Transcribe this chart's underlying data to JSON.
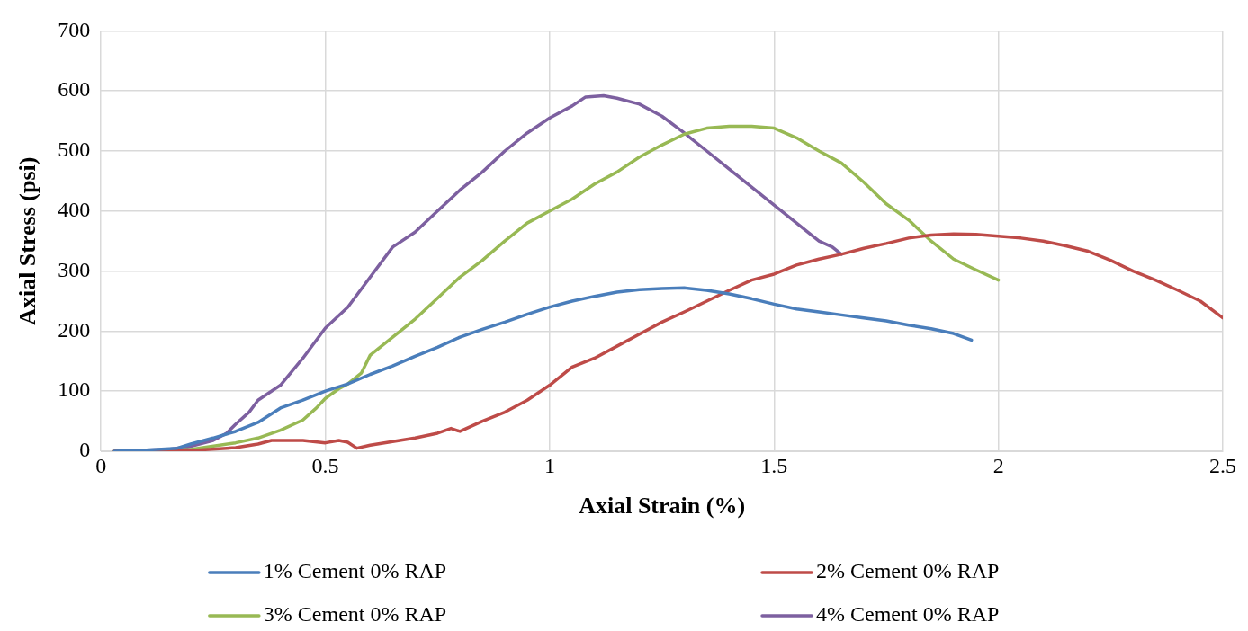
{
  "chart_data": {
    "type": "line",
    "xlabel": "Axial Strain (%)",
    "ylabel": "Axial Stress (psi)",
    "xlim": [
      0,
      2.5
    ],
    "xticks": [
      0,
      0.5,
      1,
      1.5,
      2,
      2.5
    ],
    "ylim": [
      0,
      700
    ],
    "yticks": [
      0,
      100,
      200,
      300,
      400,
      500,
      600,
      700
    ],
    "grid": true,
    "legend": "bottom",
    "marker": "none",
    "line_style": "solid",
    "series": [
      {
        "name": "1% Cement 0% RAP",
        "color": "#4a7ebb",
        "x": [
          0.03,
          0.1,
          0.17,
          0.2,
          0.25,
          0.3,
          0.35,
          0.4,
          0.45,
          0.5,
          0.55,
          0.6,
          0.65,
          0.7,
          0.75,
          0.8,
          0.85,
          0.9,
          0.95,
          1.0,
          1.05,
          1.1,
          1.15,
          1.2,
          1.25,
          1.3,
          1.35,
          1.4,
          1.45,
          1.5,
          1.55,
          1.6,
          1.65,
          1.7,
          1.75,
          1.8,
          1.85,
          1.9,
          1.94
        ],
        "values": [
          0,
          2,
          5,
          12,
          22,
          33,
          48,
          72,
          85,
          100,
          112,
          128,
          142,
          158,
          173,
          190,
          203,
          215,
          228,
          240,
          250,
          258,
          265,
          269,
          271,
          272,
          268,
          262,
          254,
          245,
          237,
          232,
          227,
          222,
          217,
          210,
          204,
          196,
          185
        ]
      },
      {
        "name": "2% Cement 0% RAP",
        "color": "#be4b48",
        "x": [
          0.03,
          0.2,
          0.3,
          0.35,
          0.38,
          0.45,
          0.5,
          0.53,
          0.55,
          0.57,
          0.6,
          0.65,
          0.7,
          0.75,
          0.78,
          0.8,
          0.85,
          0.9,
          0.95,
          1.0,
          1.05,
          1.1,
          1.15,
          1.2,
          1.25,
          1.3,
          1.35,
          1.4,
          1.45,
          1.5,
          1.55,
          1.6,
          1.65,
          1.7,
          1.75,
          1.8,
          1.85,
          1.9,
          1.95,
          2.0,
          2.05,
          2.1,
          2.15,
          2.2,
          2.25,
          2.3,
          2.35,
          2.4,
          2.45,
          2.5
        ],
        "values": [
          0,
          1,
          6,
          12,
          18,
          18,
          14,
          18,
          15,
          5,
          10,
          16,
          22,
          30,
          38,
          33,
          50,
          65,
          85,
          110,
          140,
          155,
          175,
          195,
          215,
          232,
          250,
          268,
          285,
          295,
          310,
          320,
          328,
          338,
          346,
          355,
          360,
          362,
          361,
          358,
          355,
          350,
          342,
          333,
          318,
          300,
          285,
          268,
          250,
          222
        ]
      },
      {
        "name": "3% Cement 0% RAP",
        "color": "#98b954",
        "x": [
          0.03,
          0.2,
          0.3,
          0.35,
          0.4,
          0.45,
          0.48,
          0.5,
          0.53,
          0.55,
          0.58,
          0.6,
          0.65,
          0.7,
          0.75,
          0.8,
          0.85,
          0.9,
          0.95,
          1.0,
          1.05,
          1.1,
          1.15,
          1.2,
          1.25,
          1.3,
          1.35,
          1.4,
          1.45,
          1.5,
          1.55,
          1.6,
          1.65,
          1.7,
          1.75,
          1.8,
          1.85,
          1.9,
          1.95,
          2.0
        ],
        "values": [
          0,
          3,
          14,
          22,
          35,
          52,
          72,
          88,
          104,
          112,
          130,
          160,
          190,
          220,
          255,
          290,
          318,
          350,
          380,
          400,
          420,
          445,
          465,
          490,
          510,
          528,
          538,
          541,
          541,
          538,
          522,
          500,
          480,
          448,
          412,
          385,
          350,
          320,
          302,
          285
        ]
      },
      {
        "name": "4% Cement 0% RAP",
        "color": "#7d60a0",
        "x": [
          0.03,
          0.15,
          0.2,
          0.25,
          0.28,
          0.3,
          0.33,
          0.35,
          0.4,
          0.45,
          0.5,
          0.55,
          0.6,
          0.65,
          0.7,
          0.75,
          0.8,
          0.85,
          0.9,
          0.95,
          1.0,
          1.05,
          1.08,
          1.12,
          1.15,
          1.2,
          1.25,
          1.3,
          1.35,
          1.4,
          1.45,
          1.5,
          1.55,
          1.6,
          1.63,
          1.65
        ],
        "values": [
          0,
          3,
          8,
          18,
          30,
          45,
          65,
          85,
          110,
          155,
          205,
          240,
          290,
          340,
          365,
          400,
          435,
          465,
          500,
          530,
          555,
          575,
          590,
          592,
          588,
          578,
          558,
          530,
          500,
          470,
          440,
          410,
          380,
          350,
          340,
          328
        ]
      }
    ]
  }
}
